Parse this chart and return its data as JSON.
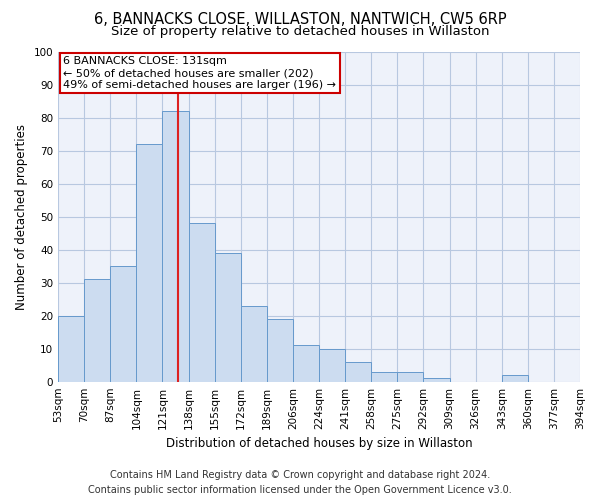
{
  "title": "6, BANNACKS CLOSE, WILLASTON, NANTWICH, CW5 6RP",
  "subtitle": "Size of property relative to detached houses in Willaston",
  "xlabel": "Distribution of detached houses by size in Willaston",
  "ylabel": "Number of detached properties",
  "bar_values": [
    20,
    31,
    35,
    72,
    82,
    48,
    39,
    23,
    19,
    11,
    10,
    6,
    3,
    3,
    1,
    0,
    0,
    2,
    0,
    0
  ],
  "bar_labels": [
    "53sqm",
    "70sqm",
    "87sqm",
    "104sqm",
    "121sqm",
    "138sqm",
    "155sqm",
    "172sqm",
    "189sqm",
    "206sqm",
    "224sqm",
    "241sqm",
    "258sqm",
    "275sqm",
    "292sqm",
    "309sqm",
    "326sqm",
    "343sqm",
    "360sqm",
    "377sqm",
    "394sqm"
  ],
  "bar_color": "#ccdcf0",
  "bar_edge_color": "#6699cc",
  "highlight_line_color": "#dd2222",
  "ylim": [
    0,
    100
  ],
  "yticks": [
    0,
    10,
    20,
    30,
    40,
    50,
    60,
    70,
    80,
    90,
    100
  ],
  "annotation_text": "6 BANNACKS CLOSE: 131sqm\n← 50% of detached houses are smaller (202)\n49% of semi-detached houses are larger (196) →",
  "annotation_box_color": "#ffffff",
  "annotation_box_edge": "#cc0000",
  "footer_line1": "Contains HM Land Registry data © Crown copyright and database right 2024.",
  "footer_line2": "Contains public sector information licensed under the Open Government Licence v3.0.",
  "bg_color": "#eef2fa",
  "grid_color": "#b8c8e0",
  "title_fontsize": 10.5,
  "subtitle_fontsize": 9.5,
  "axis_label_fontsize": 8.5,
  "tick_fontsize": 7.5,
  "footer_fontsize": 7,
  "annotation_fontsize": 8
}
